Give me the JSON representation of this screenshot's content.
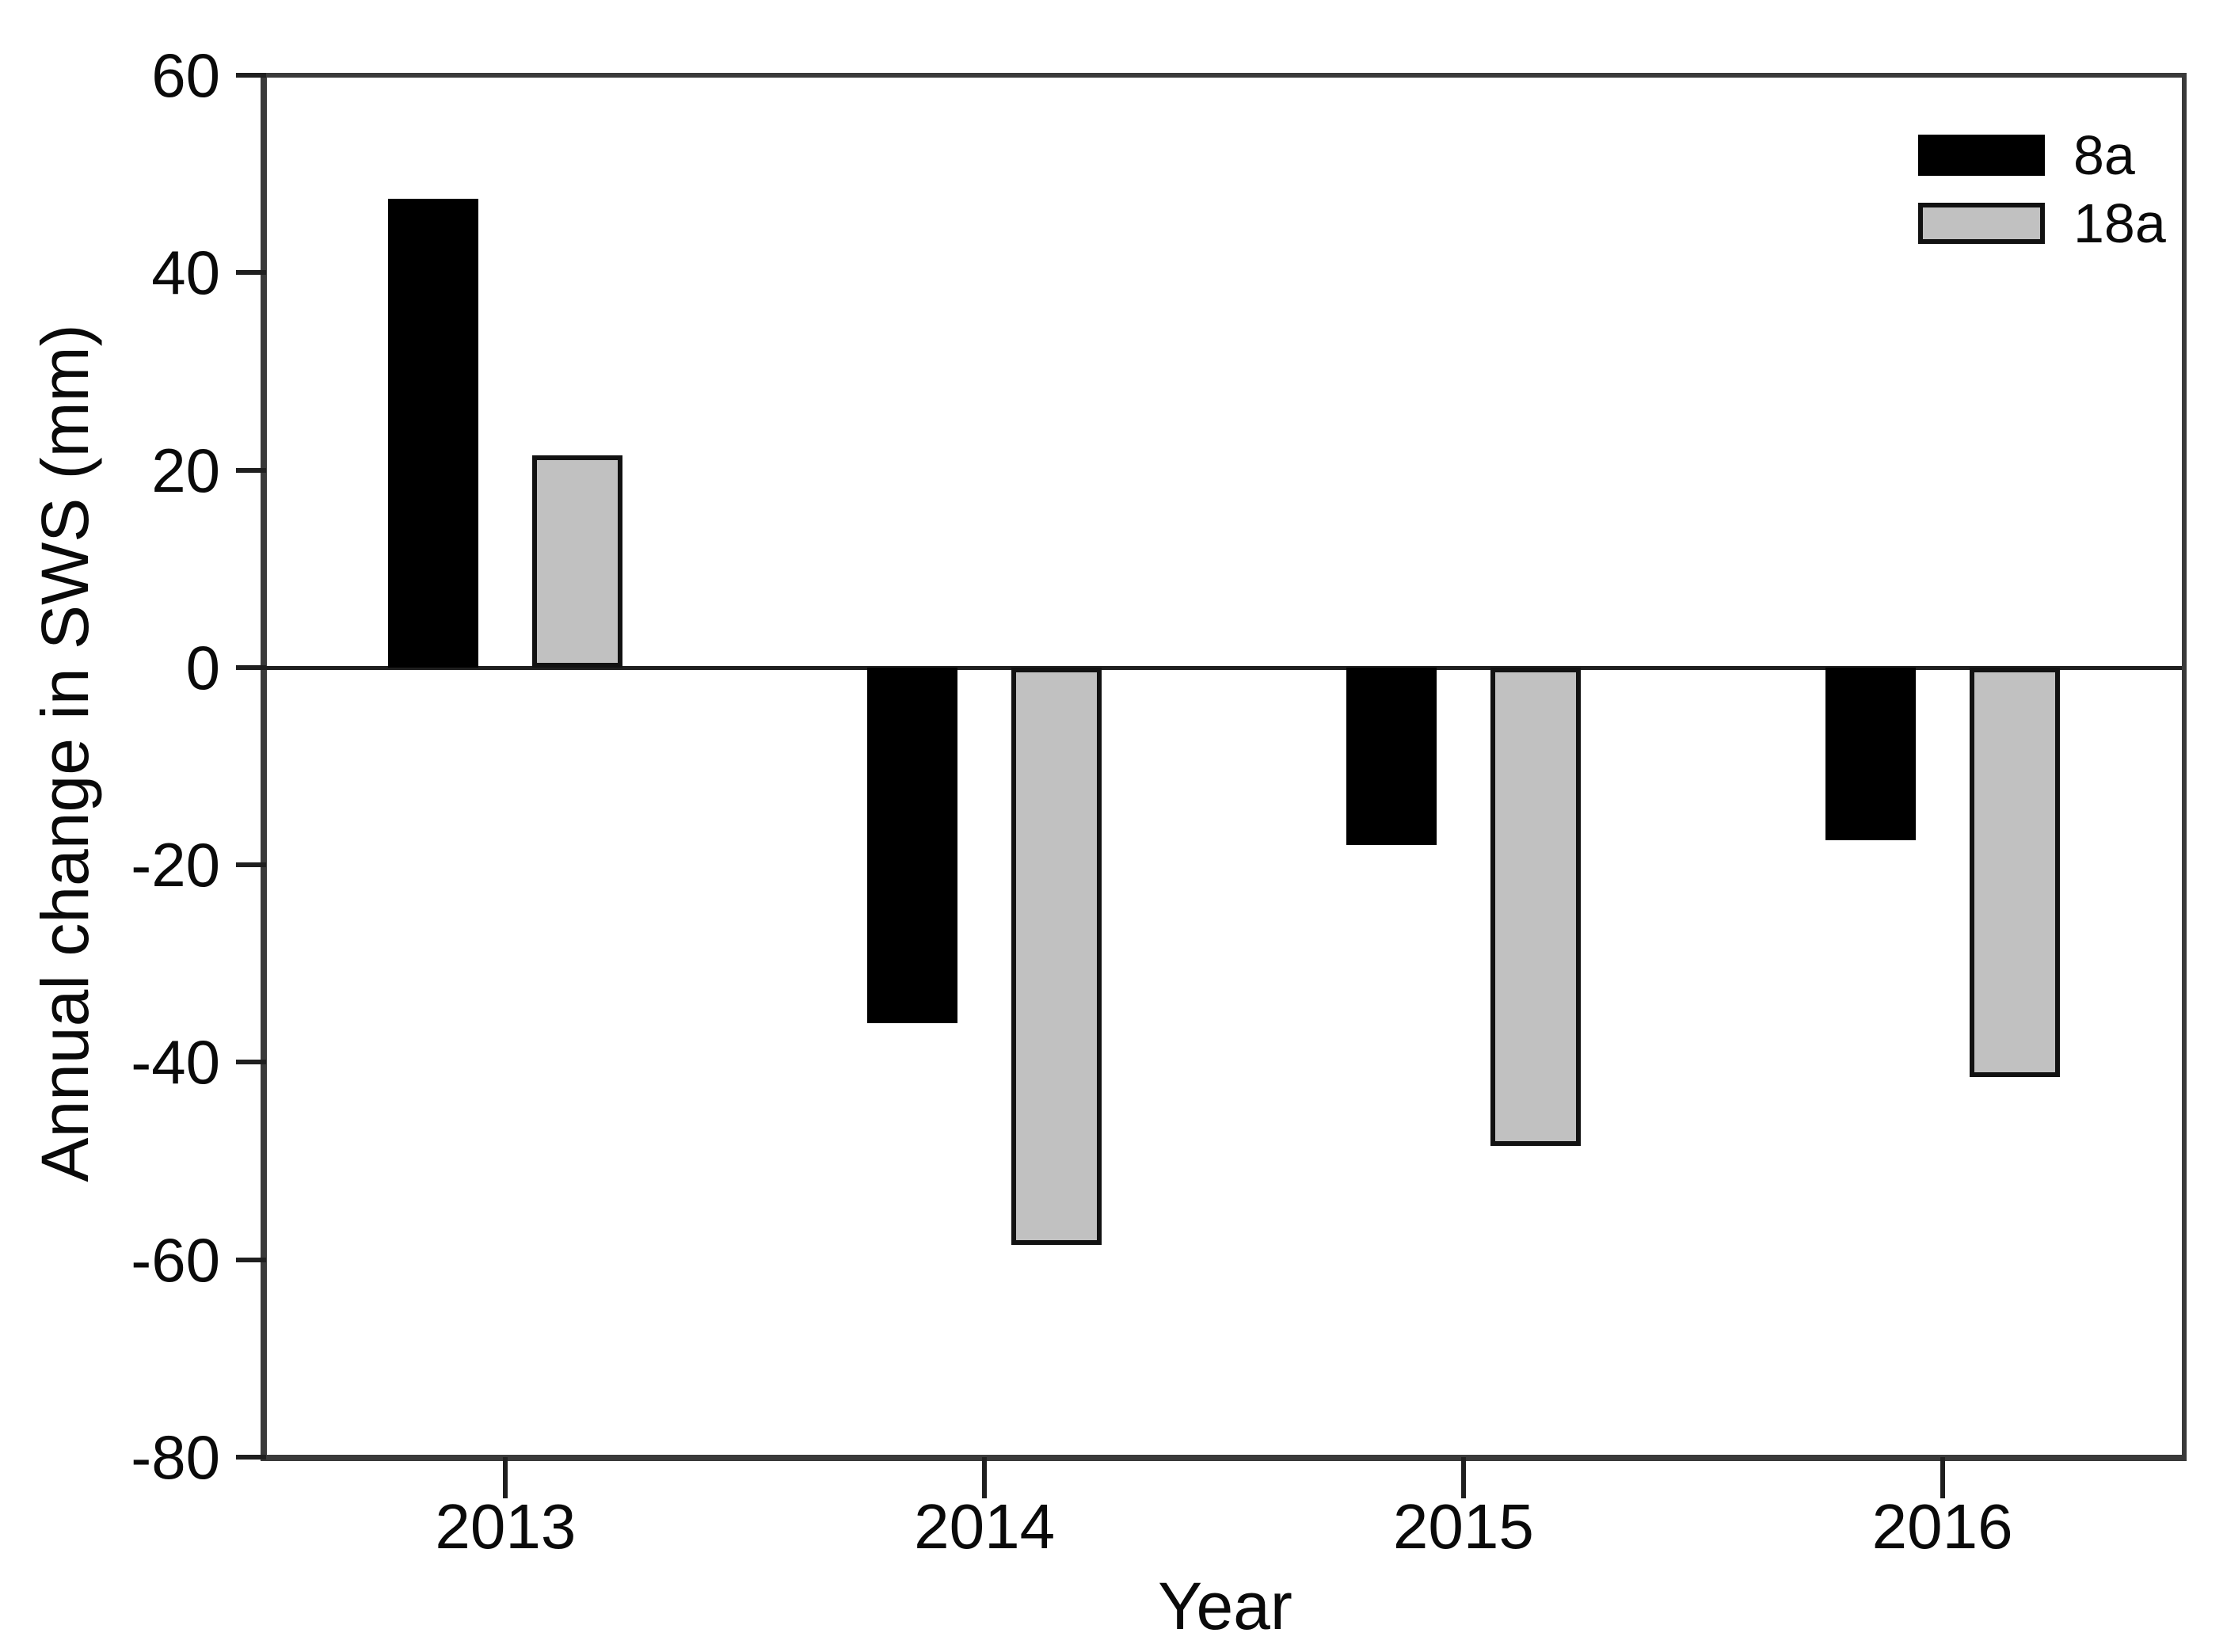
{
  "chart_data": {
    "type": "bar",
    "title": "",
    "xlabel": "Year",
    "ylabel": "Annual change in SWS (mm)",
    "categories": [
      "2013",
      "2014",
      "2015",
      "2016"
    ],
    "series": [
      {
        "name": "8a",
        "color": "#000000",
        "values": [
          47.5,
          -36.0,
          -18.0,
          -17.5
        ]
      },
      {
        "name": "18a",
        "color": "#c1c1c1",
        "border_color": "#121212",
        "values": [
          21.5,
          -58.5,
          -48.5,
          -41.5
        ]
      }
    ],
    "ylim": [
      -80,
      60
    ],
    "ytick_step": 20,
    "yticks": [
      60,
      40,
      20,
      0,
      -20,
      -40,
      -60,
      -80
    ],
    "legend_position": "top-right",
    "grid": false,
    "zero_line": true,
    "frame_color": "#3a3a3a",
    "background_color": "#ffffff"
  }
}
